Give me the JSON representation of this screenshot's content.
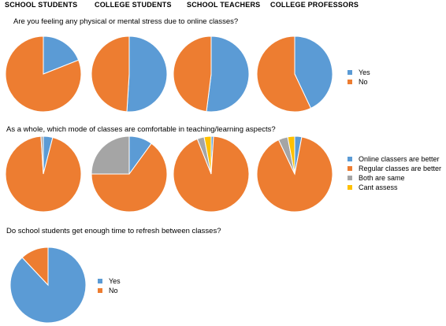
{
  "headers": [
    "SCHOOL STUDENTS",
    "COLLEGE STUDENTS",
    "SCHOOL TEACHERS",
    "COLLEGE PROFESSORS"
  ],
  "colors": {
    "blue": "#5B9BD5",
    "orange": "#ED7D31",
    "gray": "#A5A5A5",
    "yellow": "#FFC000"
  },
  "legends": {
    "q1": [
      {
        "label": "Yes",
        "color": "#5B9BD5"
      },
      {
        "label": "No",
        "color": "#ED7D31"
      }
    ],
    "q2": [
      {
        "label": "Online classers are better",
        "color": "#5B9BD5"
      },
      {
        "label": "Regular classes are better",
        "color": "#ED7D31"
      },
      {
        "label": "Both are same",
        "color": "#A5A5A5"
      },
      {
        "label": "Cant assess",
        "color": "#FFC000"
      }
    ],
    "q3": [
      {
        "label": "Yes",
        "color": "#5B9BD5"
      },
      {
        "label": "No",
        "color": "#ED7D31"
      }
    ]
  },
  "chart_data": [
    {
      "type": "pie",
      "title": "Are you feeling any physical or mental stress due to online classes?",
      "categories": [
        "Yes",
        "No"
      ],
      "series": [
        {
          "name": "SCHOOL STUDENTS",
          "values": [
            19,
            81
          ]
        },
        {
          "name": "COLLEGE STUDENTS",
          "values": [
            51,
            49
          ]
        },
        {
          "name": "SCHOOL TEACHERS",
          "values": [
            52,
            48
          ]
        },
        {
          "name": "COLLEGE PROFESSORS",
          "values": [
            43,
            57
          ]
        }
      ],
      "legend": "right"
    },
    {
      "type": "pie",
      "title": "As a whole, which mode of classes are comfortable in teaching/learning aspects?",
      "categories": [
        "Online classers are better",
        "Regular classes are better",
        "Both are same",
        "Cant assess"
      ],
      "series": [
        {
          "name": "SCHOOL STUDENTS",
          "values": [
            4,
            95,
            1,
            0
          ]
        },
        {
          "name": "COLLEGE STUDENTS",
          "values": [
            10,
            65,
            25,
            0
          ]
        },
        {
          "name": "SCHOOL TEACHERS",
          "values": [
            1,
            93,
            3,
            3
          ]
        },
        {
          "name": "COLLEGE PROFESSORS",
          "values": [
            3,
            90,
            4,
            3
          ]
        }
      ],
      "legend": "right"
    },
    {
      "type": "pie",
      "title": "Do school students get enough time to refresh between classes?",
      "categories": [
        "Yes",
        "No"
      ],
      "series": [
        {
          "name": "SCHOOL STUDENTS",
          "values": [
            88,
            12
          ]
        }
      ],
      "legend": "right"
    }
  ]
}
